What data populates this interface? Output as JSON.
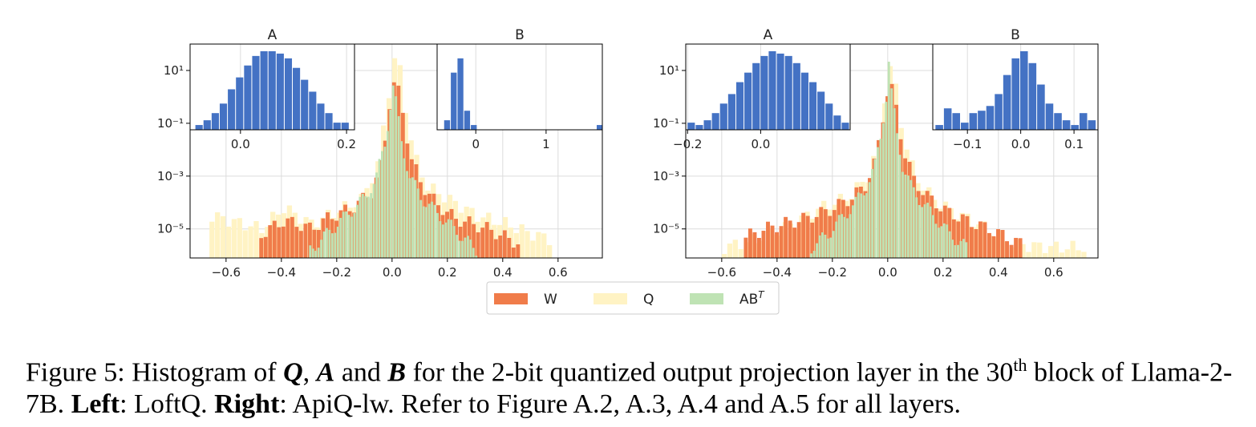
{
  "legend": {
    "entries": [
      {
        "label": "W",
        "color": "#f07c4a"
      },
      {
        "label": "Q",
        "color": "#fff3c4"
      },
      {
        "label": "AB",
        "sup": "T",
        "color": "#bfe3b4"
      }
    ]
  },
  "caption": {
    "prefix": "Figure 5: Histogram of ",
    "q": "Q",
    "sep1": ", ",
    "a": "A",
    "and": " and ",
    "b": "B",
    "rest1": " for the 2-bit quantized output projection layer in the 30",
    "th": "th",
    "rest2": " block of Llama-2-7B. ",
    "left_label": "Left",
    "left_text": ": LoftQ. ",
    "right_label": "Right",
    "right_text": ": ApiQ-lw. Refer to Figure A.2, A.3, A.4 and A.5 for all layers."
  },
  "colors": {
    "W": "#f07c4a",
    "Q": "#fff3c4",
    "AB": "#bfe3b4",
    "inset": "#4472c4"
  },
  "chart_data": [
    {
      "name": "Left",
      "type": "bar",
      "main": {
        "xlim": [
          -0.73,
          0.76
        ],
        "ylog": true,
        "ylim_exp": [
          -6.1,
          2.0
        ],
        "xticks": [
          -0.6,
          -0.4,
          -0.2,
          0.0,
          0.2,
          0.4,
          0.6
        ],
        "xtick_labels": [
          "−0.6",
          "−0.4",
          "−0.2",
          "0.0",
          "0.2",
          "0.4",
          "0.6"
        ],
        "yticks": [
          -1,
          -3,
          -5
        ],
        "ytick_labels": [
          "10⁻¹",
          "10⁻³",
          "10⁻⁵"
        ],
        "ytick_exp_top": 1,
        "ytick_label_top": "10¹",
        "grid": true,
        "series": {
          "Q": [
            [
              -0.66,
              -4.5
            ],
            [
              -0.55,
              -4.8
            ],
            [
              -0.48,
              -5.0
            ],
            [
              -0.4,
              -4.2
            ],
            [
              -0.3,
              -4.8
            ],
            [
              -0.2,
              -4.3
            ],
            [
              -0.12,
              -3.9
            ],
            [
              -0.06,
              -2.6
            ],
            [
              -0.03,
              -0.5
            ],
            [
              -0.01,
              0.9
            ],
            [
              0.0,
              1.4
            ],
            [
              0.02,
              1.0
            ],
            [
              0.04,
              -0.4
            ],
            [
              0.07,
              -2.2
            ],
            [
              0.12,
              -3.4
            ],
            [
              0.2,
              -3.9
            ],
            [
              0.3,
              -4.5
            ],
            [
              0.4,
              -4.8
            ],
            [
              0.5,
              -5.2
            ],
            [
              0.57,
              -5.4
            ]
          ],
          "W": [
            [
              -0.48,
              -5.2
            ],
            [
              -0.4,
              -4.7
            ],
            [
              -0.35,
              -4.8
            ],
            [
              -0.3,
              -5.0
            ],
            [
              -0.24,
              -4.6
            ],
            [
              -0.15,
              -4.2
            ],
            [
              -0.08,
              -3.6
            ],
            [
              -0.04,
              -2.4
            ],
            [
              -0.02,
              -0.4
            ],
            [
              0.0,
              0.5
            ],
            [
              0.02,
              0.1
            ],
            [
              0.04,
              -1.0
            ],
            [
              0.06,
              -2.3
            ],
            [
              0.1,
              -3.3
            ],
            [
              0.15,
              -4.0
            ],
            [
              0.22,
              -4.6
            ],
            [
              0.28,
              -4.8
            ],
            [
              0.34,
              -5.0
            ],
            [
              0.4,
              -5.3
            ],
            [
              0.46,
              -5.6
            ]
          ],
          "AB": [
            [
              -0.3,
              -5.8
            ],
            [
              -0.25,
              -5.3
            ],
            [
              -0.2,
              -4.8
            ],
            [
              -0.15,
              -4.3
            ],
            [
              -0.1,
              -3.8
            ],
            [
              -0.06,
              -3.0
            ],
            [
              -0.03,
              -1.8
            ],
            [
              -0.01,
              -0.3
            ],
            [
              0.0,
              0.4
            ],
            [
              0.01,
              -0.2
            ],
            [
              0.03,
              -1.7
            ],
            [
              0.06,
              -3.0
            ],
            [
              0.1,
              -3.8
            ],
            [
              0.15,
              -4.3
            ],
            [
              0.2,
              -4.8
            ],
            [
              0.25,
              -5.3
            ],
            [
              0.3,
              -5.8
            ]
          ]
        }
      },
      "insets": [
        {
          "title": "A",
          "xticks": [
            0.0,
            0.2
          ],
          "xtick_labels": [
            "0.0",
            "0.2"
          ],
          "xlim": [
            -0.095,
            0.215
          ],
          "values": [
            -1.0,
            -0.8,
            -0.5,
            -0.1,
            0.5,
            1.0,
            1.5,
            1.9,
            2.1,
            2.1,
            2.0,
            1.8,
            1.4,
            0.9,
            0.4,
            -0.1,
            -0.5,
            -0.9,
            -0.9
          ],
          "bin_start": -0.085,
          "bin_width": 0.0153
        },
        {
          "title": "B",
          "xticks": [
            0,
            1
          ],
          "xtick_labels": [
            "0",
            "1"
          ],
          "xlim": [
            -0.55,
            1.8
          ],
          "values": [
            -0.8,
            1.2,
            1.8,
            -0.4,
            -1.0
          ],
          "bin_start": -0.45,
          "bin_width": 0.095,
          "extra": [
            [
              1.72,
              -1.0
            ]
          ]
        }
      ]
    },
    {
      "name": "Right",
      "type": "bar",
      "main": {
        "xlim": [
          -0.73,
          0.76
        ],
        "ylog": true,
        "ylim_exp": [
          -6.1,
          2.0
        ],
        "xticks": [
          -0.6,
          -0.4,
          -0.2,
          0.0,
          0.2,
          0.4,
          0.6
        ],
        "xtick_labels": [
          "−0.6",
          "−0.4",
          "−0.2",
          "0.0",
          "0.2",
          "0.4",
          "0.6"
        ],
        "yticks": [
          -1,
          -3,
          -5
        ],
        "ytick_labels": [
          "10⁻¹",
          "10⁻³",
          "10⁻⁵"
        ],
        "ytick_exp_top": 1,
        "ytick_label_top": "10¹",
        "grid": true,
        "series": {
          "Q": [
            [
              -0.6,
              -5.7
            ],
            [
              -0.45,
              -5.3
            ],
            [
              -0.35,
              -4.8
            ],
            [
              -0.25,
              -4.2
            ],
            [
              -0.15,
              -3.8
            ],
            [
              -0.08,
              -3.0
            ],
            [
              -0.04,
              -1.8
            ],
            [
              -0.02,
              0.0
            ],
            [
              0.0,
              1.1
            ],
            [
              0.02,
              0.3
            ],
            [
              0.05,
              -1.6
            ],
            [
              0.09,
              -3.0
            ],
            [
              0.15,
              -3.8
            ],
            [
              0.22,
              -4.3
            ],
            [
              0.3,
              -4.7
            ],
            [
              0.38,
              -5.2
            ],
            [
              0.46,
              -5.6
            ],
            [
              0.6,
              -5.7
            ],
            [
              0.7,
              -5.7
            ]
          ],
          "W": [
            [
              -0.52,
              -5.3
            ],
            [
              -0.45,
              -5.0
            ],
            [
              -0.38,
              -4.8
            ],
            [
              -0.3,
              -4.6
            ],
            [
              -0.22,
              -4.3
            ],
            [
              -0.15,
              -3.9
            ],
            [
              -0.09,
              -3.4
            ],
            [
              -0.05,
              -2.4
            ],
            [
              -0.02,
              -0.5
            ],
            [
              0.0,
              0.6
            ],
            [
              0.02,
              -0.2
            ],
            [
              0.05,
              -2.0
            ],
            [
              0.09,
              -3.2
            ],
            [
              0.14,
              -3.8
            ],
            [
              0.2,
              -4.3
            ],
            [
              0.28,
              -4.7
            ],
            [
              0.36,
              -5.0
            ],
            [
              0.44,
              -5.4
            ],
            [
              0.48,
              -5.6
            ]
          ],
          "AB": [
            [
              -0.28,
              -5.7
            ],
            [
              -0.22,
              -5.2
            ],
            [
              -0.17,
              -4.6
            ],
            [
              -0.12,
              -4.0
            ],
            [
              -0.08,
              -3.4
            ],
            [
              -0.05,
              -2.6
            ],
            [
              -0.03,
              -1.5
            ],
            [
              -0.01,
              0.0
            ],
            [
              0.0,
              1.3
            ],
            [
              0.01,
              0.1
            ],
            [
              0.03,
              -1.4
            ],
            [
              0.05,
              -2.6
            ],
            [
              0.08,
              -3.4
            ],
            [
              0.12,
              -4.0
            ],
            [
              0.17,
              -4.6
            ],
            [
              0.22,
              -5.2
            ],
            [
              0.28,
              -5.7
            ]
          ]
        }
      },
      "insets": [
        {
          "title": "A",
          "xticks": [
            -0.2,
            0.0
          ],
          "xtick_labels": [
            "−0.2",
            "0.0"
          ],
          "xlim": [
            -0.205,
            0.245
          ],
          "values": [
            -0.9,
            -1.0,
            -0.8,
            -0.5,
            -0.1,
            0.3,
            0.8,
            1.2,
            1.6,
            1.9,
            2.1,
            2.0,
            1.9,
            1.6,
            1.2,
            0.8,
            0.4,
            -0.1,
            -0.6,
            -0.9
          ],
          "bin_start": -0.2,
          "bin_width": 0.0222
        },
        {
          "title": "B",
          "xticks": [
            -0.1,
            0.0,
            0.1
          ],
          "xtick_labels": [
            "−0.1",
            "0.0",
            "0.1"
          ],
          "xlim": [
            -0.165,
            0.145
          ],
          "values": [
            -1.0,
            -0.3,
            -0.5,
            -0.9,
            -0.5,
            -0.4,
            -0.2,
            0.3,
            1.1,
            1.8,
            2.1,
            1.6,
            0.7,
            -0.1,
            -0.5,
            -0.8,
            -1.0,
            -0.5,
            -0.8
          ],
          "bin_start": -0.16,
          "bin_width": 0.0159
        }
      ]
    }
  ]
}
